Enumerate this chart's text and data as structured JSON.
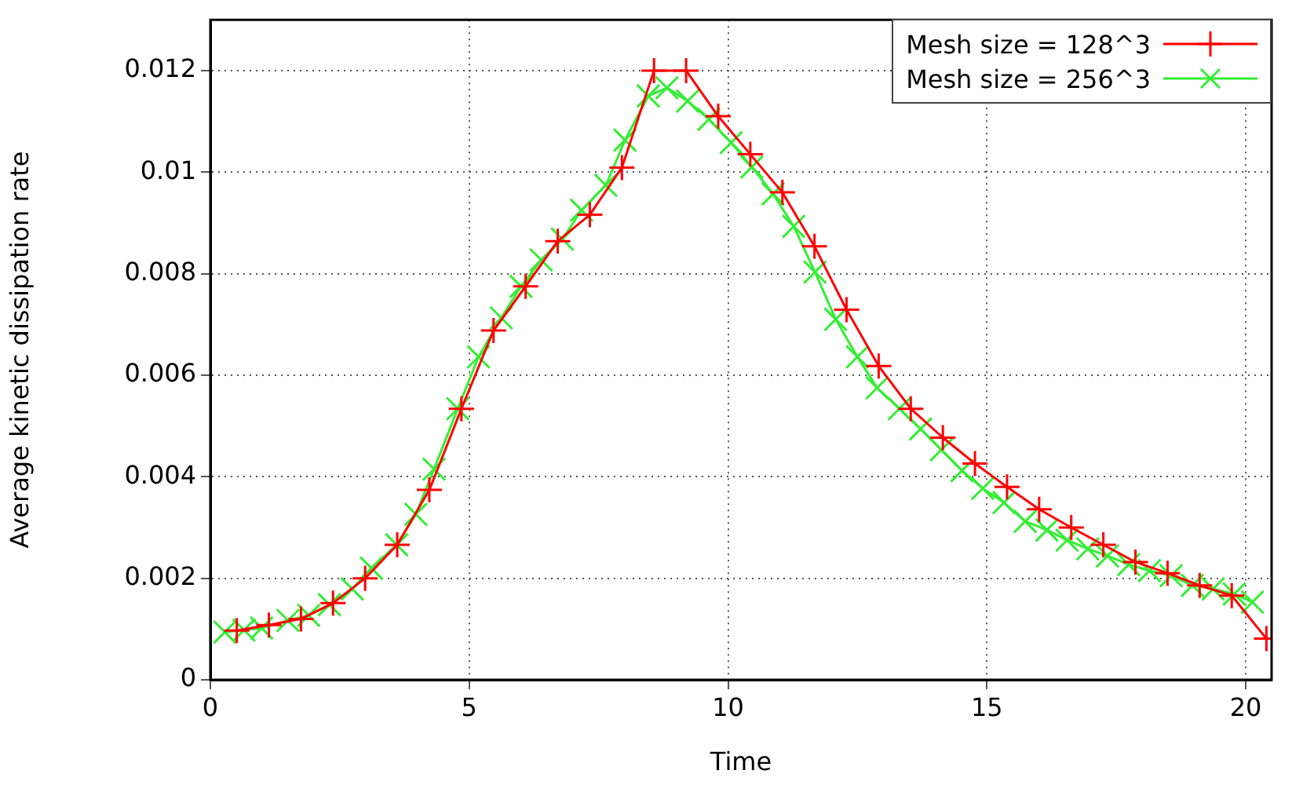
{
  "chart_data": {
    "type": "line",
    "xlabel": "Time",
    "ylabel": "Average kinetic dissipation rate",
    "xlim": [
      0,
      20.5
    ],
    "xticks": [
      0,
      5,
      10,
      15,
      20
    ],
    "ylim": [
      0,
      0.013
    ],
    "yticks": [
      0,
      0.002,
      0.004,
      0.006,
      0.008,
      0.01,
      0.012
    ],
    "grid": true,
    "legend": "top right",
    "line_style": "solid",
    "series": [
      {
        "name": "Mesh size = 128^3",
        "color": "#ff0000",
        "marker": "cross",
        "x": [
          0.51,
          1.13,
          1.75,
          2.37,
          2.99,
          3.61,
          4.23,
          4.85,
          5.47,
          6.09,
          6.71,
          7.33,
          7.95,
          8.57,
          9.19,
          9.81,
          10.43,
          11.05,
          11.67,
          12.29,
          12.91,
          13.53,
          14.15,
          14.77,
          15.39,
          16.01,
          16.63,
          17.25,
          17.87,
          18.49,
          19.11,
          19.73,
          20.4
        ],
        "values": [
          0.00097,
          0.00108,
          0.0012,
          0.00151,
          0.002,
          0.00266,
          0.00374,
          0.00534,
          0.00688,
          0.00775,
          0.00864,
          0.00916,
          0.01009,
          0.012,
          0.012,
          0.0111,
          0.01035,
          0.0096,
          0.00854,
          0.00729,
          0.00618,
          0.00534,
          0.00477,
          0.00426,
          0.0038,
          0.00336,
          0.003,
          0.00266,
          0.00232,
          0.0021,
          0.00186,
          0.00166,
          0.00081
        ]
      },
      {
        "name": "Mesh size = 256^3",
        "color": "#33ee33",
        "marker": "x",
        "x": [
          0.28,
          0.65,
          0.99,
          1.5,
          1.9,
          2.3,
          2.74,
          3.11,
          3.6,
          3.97,
          4.32,
          4.78,
          5.18,
          5.62,
          6.0,
          6.39,
          6.8,
          7.17,
          7.64,
          8.01,
          8.46,
          8.82,
          9.22,
          9.63,
          10.06,
          10.46,
          10.87,
          11.27,
          11.68,
          12.08,
          12.5,
          12.88,
          13.31,
          13.72,
          14.12,
          14.52,
          14.92,
          15.33,
          15.74,
          16.16,
          16.55,
          16.95,
          17.33,
          17.74,
          18.14,
          18.56,
          18.97,
          19.37,
          19.78,
          20.13
        ],
        "values": [
          0.00094,
          0.00098,
          0.00102,
          0.00117,
          0.00127,
          0.00148,
          0.00179,
          0.0022,
          0.00266,
          0.00326,
          0.00415,
          0.00534,
          0.00636,
          0.00713,
          0.00775,
          0.00827,
          0.00868,
          0.00925,
          0.00974,
          0.01063,
          0.0115,
          0.01166,
          0.0114,
          0.01104,
          0.01058,
          0.0101,
          0.00957,
          0.00893,
          0.00803,
          0.0071,
          0.00636,
          0.00575,
          0.00534,
          0.00494,
          0.00453,
          0.00412,
          0.00377,
          0.00349,
          0.00312,
          0.00295,
          0.00275,
          0.00258,
          0.00244,
          0.00227,
          0.00215,
          0.00205,
          0.00186,
          0.00179,
          0.00169,
          0.00153
        ]
      }
    ]
  }
}
